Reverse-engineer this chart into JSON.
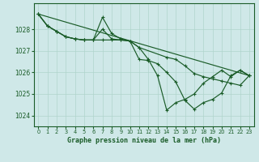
{
  "title": "Graphe pression niveau de la mer (hPa)",
  "background_color": "#cfe8e8",
  "grid_color": "#b0d4cc",
  "line_color": "#1a5c28",
  "xlim": [
    -0.5,
    23.5
  ],
  "ylim": [
    1023.5,
    1029.2
  ],
  "yticks": [
    1024,
    1025,
    1026,
    1027,
    1028
  ],
  "xticks": [
    0,
    1,
    2,
    3,
    4,
    5,
    6,
    7,
    8,
    9,
    10,
    11,
    12,
    13,
    14,
    15,
    16,
    17,
    18,
    19,
    20,
    21,
    22,
    23
  ],
  "series1_x": [
    0,
    1,
    2,
    3,
    4,
    5,
    6,
    7,
    8,
    9,
    10,
    11,
    12,
    13,
    14,
    15,
    16,
    17,
    18,
    19,
    20,
    21,
    22,
    23
  ],
  "series1_y": [
    1028.7,
    1028.15,
    1027.9,
    1027.65,
    1027.55,
    1027.5,
    1027.5,
    1028.0,
    1027.55,
    1027.5,
    1027.45,
    1026.6,
    1026.55,
    1026.4,
    1026.0,
    1025.55,
    1024.7,
    1024.3,
    1024.6,
    1024.75,
    1025.05,
    1025.85,
    1026.1,
    1025.85
  ],
  "series2_x": [
    0,
    1,
    2,
    3,
    4,
    5,
    6,
    7,
    8,
    9,
    10,
    11,
    14,
    15,
    16,
    17,
    18,
    19,
    20,
    21,
    22,
    23
  ],
  "series2_y": [
    1028.7,
    1028.15,
    1027.9,
    1027.65,
    1027.55,
    1027.5,
    1027.5,
    1027.5,
    1027.5,
    1027.5,
    1027.45,
    1027.15,
    1026.7,
    1026.6,
    1026.3,
    1025.95,
    1025.8,
    1025.7,
    1025.6,
    1025.5,
    1025.4,
    1025.85
  ],
  "series3_x": [
    0,
    23
  ],
  "series3_y": [
    1028.7,
    1025.85
  ],
  "series4_x": [
    0,
    1,
    2,
    3,
    4,
    5,
    6,
    7,
    8,
    9,
    10,
    11,
    12,
    13,
    14,
    15,
    16,
    17,
    18,
    19,
    20,
    21,
    22,
    23
  ],
  "series4_y": [
    1028.7,
    1028.15,
    1027.9,
    1027.65,
    1027.55,
    1027.5,
    1027.5,
    1028.55,
    1027.8,
    1027.55,
    1027.45,
    1027.15,
    1026.6,
    1025.85,
    1024.25,
    1024.6,
    1024.75,
    1025.0,
    1025.5,
    1025.8,
    1026.1,
    1025.8,
    1026.1,
    1025.85
  ]
}
